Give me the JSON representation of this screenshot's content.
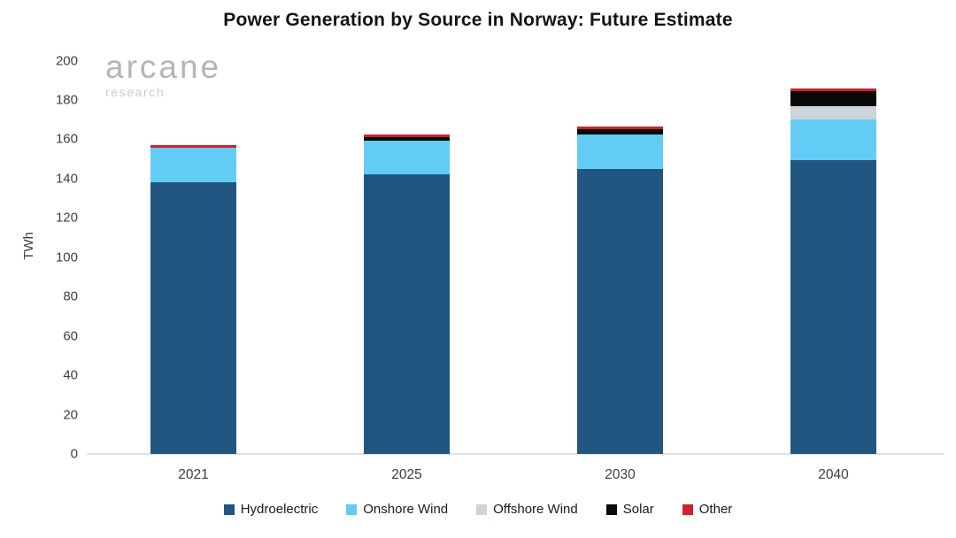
{
  "title": "Power Generation by Source in Norway: Future Estimate",
  "logo": {
    "name": "arcane",
    "subtitle": "research"
  },
  "chart_data": {
    "type": "bar",
    "stacked": true,
    "title": "Power Generation by Source in Norway: Future Estimate",
    "categories": [
      "2021",
      "2025",
      "2030",
      "2040"
    ],
    "series": [
      {
        "name": "Hydroelectric",
        "color": "#20567F",
        "values": [
          138,
          142,
          145,
          149.5
        ]
      },
      {
        "name": "Onshore Wind",
        "color": "#63CCF5",
        "values": [
          17.5,
          17.5,
          17.5,
          20.5
        ]
      },
      {
        "name": "Offshore Wind",
        "color": "#CDD3DB",
        "values": [
          0,
          0,
          0,
          7
        ]
      },
      {
        "name": "Solar",
        "color": "#0A0A0A",
        "values": [
          0,
          1.5,
          2.5,
          7.5
        ]
      },
      {
        "name": "Other",
        "color": "#C9242E",
        "values": [
          1.5,
          1.5,
          1.5,
          1.5
        ]
      }
    ],
    "xlabel": "",
    "ylabel": "TWh",
    "ylim": [
      0,
      200
    ],
    "ytick_step": 20,
    "grid": false,
    "legend_position": "bottom"
  },
  "colors": {
    "axis_line": "#DDE1E4",
    "tick_text": "#404040",
    "title_text": "#141414",
    "logo_primary": "#B5B5B7",
    "logo_secondary": "#CCCCCD"
  }
}
